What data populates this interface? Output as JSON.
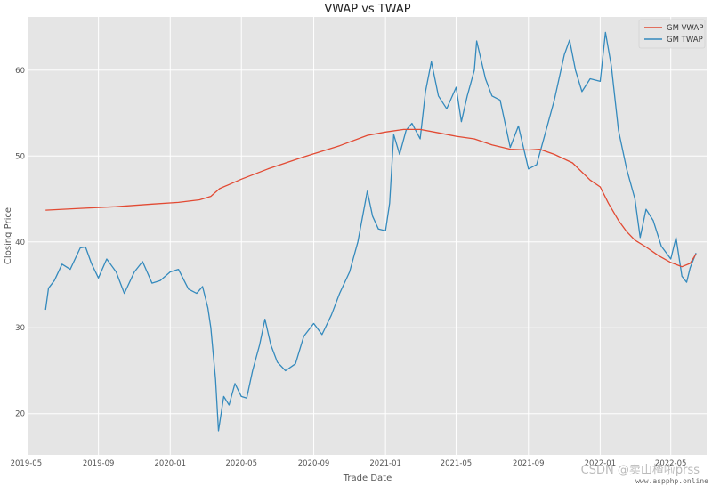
{
  "chart_data": {
    "type": "line",
    "title": "VWAP vs TWAP",
    "xlabel": "Trade Date",
    "ylabel": "Closing Price",
    "xlim": [
      "2019-05-05",
      "2022-07-01"
    ],
    "ylim": [
      15.2,
      66.2
    ],
    "yticks": [
      20,
      30,
      40,
      50,
      60
    ],
    "xticks": [
      "2019-05",
      "2019-09",
      "2020-01",
      "2020-05",
      "2020-09",
      "2021-01",
      "2021-05",
      "2021-09",
      "2022-01",
      "2022-05"
    ],
    "grid": true,
    "legend_position": "top-right",
    "series": [
      {
        "name": "GM VWAP",
        "color": "#E24A33",
        "points": [
          [
            "2019-06-03",
            43.7
          ],
          [
            "2019-08-01",
            43.9
          ],
          [
            "2019-10-01",
            44.1
          ],
          [
            "2019-12-01",
            44.4
          ],
          [
            "2020-01-15",
            44.6
          ],
          [
            "2020-02-20",
            44.9
          ],
          [
            "2020-03-10",
            45.3
          ],
          [
            "2020-03-25",
            46.2
          ],
          [
            "2020-05-01",
            47.3
          ],
          [
            "2020-06-15",
            48.5
          ],
          [
            "2020-08-15",
            49.9
          ],
          [
            "2020-10-15",
            51.2
          ],
          [
            "2020-12-01",
            52.4
          ],
          [
            "2021-01-01",
            52.8
          ],
          [
            "2021-02-01",
            53.1
          ],
          [
            "2021-03-01",
            53.1
          ],
          [
            "2021-04-01",
            52.7
          ],
          [
            "2021-05-01",
            52.3
          ],
          [
            "2021-06-01",
            52.0
          ],
          [
            "2021-07-01",
            51.3
          ],
          [
            "2021-08-01",
            50.8
          ],
          [
            "2021-09-01",
            50.7
          ],
          [
            "2021-09-20",
            50.8
          ],
          [
            "2021-10-15",
            50.2
          ],
          [
            "2021-11-15",
            49.2
          ],
          [
            "2021-12-15",
            47.2
          ],
          [
            "2022-01-01",
            46.4
          ],
          [
            "2022-01-15",
            44.5
          ],
          [
            "2022-02-01",
            42.5
          ],
          [
            "2022-02-15",
            41.2
          ],
          [
            "2022-03-01",
            40.2
          ],
          [
            "2022-03-20",
            39.4
          ],
          [
            "2022-04-10",
            38.4
          ],
          [
            "2022-05-01",
            37.6
          ],
          [
            "2022-05-20",
            37.1
          ],
          [
            "2022-06-03",
            37.5
          ],
          [
            "2022-06-13",
            38.6
          ]
        ]
      },
      {
        "name": "GM TWAP",
        "color": "#348ABD",
        "points": [
          [
            "2019-06-03",
            32.1
          ],
          [
            "2019-06-08",
            34.6
          ],
          [
            "2019-06-18",
            35.5
          ],
          [
            "2019-07-01",
            37.4
          ],
          [
            "2019-07-15",
            36.8
          ],
          [
            "2019-08-01",
            39.3
          ],
          [
            "2019-08-10",
            39.4
          ],
          [
            "2019-08-20",
            37.5
          ],
          [
            "2019-09-01",
            35.8
          ],
          [
            "2019-09-15",
            38.0
          ],
          [
            "2019-10-01",
            36.5
          ],
          [
            "2019-10-15",
            34.0
          ],
          [
            "2019-11-01",
            36.5
          ],
          [
            "2019-11-15",
            37.7
          ],
          [
            "2019-12-01",
            35.2
          ],
          [
            "2019-12-15",
            35.5
          ],
          [
            "2020-01-01",
            36.5
          ],
          [
            "2020-01-15",
            36.8
          ],
          [
            "2020-02-01",
            34.5
          ],
          [
            "2020-02-15",
            34.0
          ],
          [
            "2020-02-25",
            34.8
          ],
          [
            "2020-03-05",
            32.3
          ],
          [
            "2020-03-10",
            30.0
          ],
          [
            "2020-03-18",
            24.0
          ],
          [
            "2020-03-23",
            18.0
          ],
          [
            "2020-04-01",
            22.0
          ],
          [
            "2020-04-10",
            21.0
          ],
          [
            "2020-04-20",
            23.5
          ],
          [
            "2020-05-01",
            22.0
          ],
          [
            "2020-05-10",
            21.8
          ],
          [
            "2020-05-20",
            25.0
          ],
          [
            "2020-06-01",
            28.0
          ],
          [
            "2020-06-10",
            31.0
          ],
          [
            "2020-06-20",
            28.0
          ],
          [
            "2020-07-01",
            26.0
          ],
          [
            "2020-07-15",
            25.0
          ],
          [
            "2020-08-01",
            25.8
          ],
          [
            "2020-08-15",
            29.0
          ],
          [
            "2020-09-01",
            30.5
          ],
          [
            "2020-09-15",
            29.2
          ],
          [
            "2020-10-01",
            31.5
          ],
          [
            "2020-10-15",
            34.0
          ],
          [
            "2020-11-01",
            36.5
          ],
          [
            "2020-11-15",
            40.0
          ],
          [
            "2020-12-01",
            45.9
          ],
          [
            "2020-12-10",
            43.0
          ],
          [
            "2020-12-20",
            41.5
          ],
          [
            "2021-01-01",
            41.3
          ],
          [
            "2021-01-08",
            44.5
          ],
          [
            "2021-01-15",
            52.5
          ],
          [
            "2021-01-25",
            50.2
          ],
          [
            "2021-02-05",
            53.0
          ],
          [
            "2021-02-15",
            53.8
          ],
          [
            "2021-03-01",
            52.0
          ],
          [
            "2021-03-10",
            57.5
          ],
          [
            "2021-03-20",
            61.0
          ],
          [
            "2021-04-01",
            57.0
          ],
          [
            "2021-04-15",
            55.5
          ],
          [
            "2021-05-01",
            58.0
          ],
          [
            "2021-05-10",
            54.0
          ],
          [
            "2021-05-20",
            57.0
          ],
          [
            "2021-06-01",
            60.0
          ],
          [
            "2021-06-05",
            63.4
          ],
          [
            "2021-06-20",
            59.0
          ],
          [
            "2021-07-01",
            57.0
          ],
          [
            "2021-07-15",
            56.5
          ],
          [
            "2021-08-01",
            51.0
          ],
          [
            "2021-08-15",
            53.5
          ],
          [
            "2021-09-01",
            48.5
          ],
          [
            "2021-09-15",
            49.0
          ],
          [
            "2021-10-01",
            53.0
          ],
          [
            "2021-10-15",
            56.5
          ],
          [
            "2021-11-01",
            61.8
          ],
          [
            "2021-11-10",
            63.5
          ],
          [
            "2021-11-20",
            60.0
          ],
          [
            "2021-12-01",
            57.5
          ],
          [
            "2021-12-15",
            59.0
          ],
          [
            "2022-01-01",
            58.7
          ],
          [
            "2022-01-10",
            64.4
          ],
          [
            "2022-01-20",
            60.5
          ],
          [
            "2022-02-01",
            53.0
          ],
          [
            "2022-02-15",
            48.5
          ],
          [
            "2022-03-01",
            45.0
          ],
          [
            "2022-03-10",
            40.5
          ],
          [
            "2022-03-20",
            43.8
          ],
          [
            "2022-04-01",
            42.5
          ],
          [
            "2022-04-15",
            39.5
          ],
          [
            "2022-05-01",
            38.0
          ],
          [
            "2022-05-10",
            40.5
          ],
          [
            "2022-05-20",
            36.0
          ],
          [
            "2022-05-28",
            35.3
          ],
          [
            "2022-06-03",
            37.0
          ],
          [
            "2022-06-13",
            38.7
          ]
        ]
      }
    ]
  },
  "watermark": {
    "text": "CSDN @卖山楂啦prss",
    "subtext": "www.aspphp.online"
  }
}
